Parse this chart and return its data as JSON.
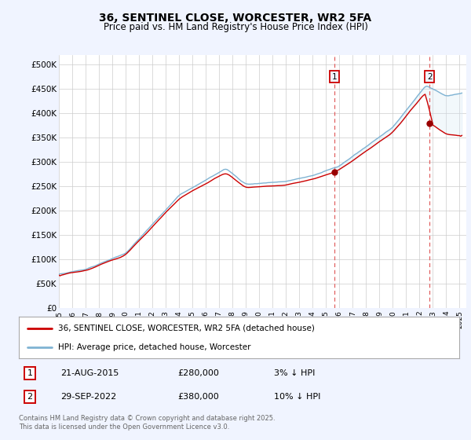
{
  "title": "36, SENTINEL CLOSE, WORCESTER, WR2 5FA",
  "subtitle": "Price paid vs. HM Land Registry's House Price Index (HPI)",
  "ylabel_ticks": [
    "£0",
    "£50K",
    "£100K",
    "£150K",
    "£200K",
    "£250K",
    "£300K",
    "£350K",
    "£400K",
    "£450K",
    "£500K"
  ],
  "ytick_values": [
    0,
    50000,
    100000,
    150000,
    200000,
    250000,
    300000,
    350000,
    400000,
    450000,
    500000
  ],
  "ylim": [
    0,
    520000
  ],
  "xlim_start": 1995.0,
  "xlim_end": 2025.5,
  "purchase1_date": 2015.64,
  "purchase1_price": 280000,
  "purchase2_date": 2022.75,
  "purchase2_price": 380000,
  "line1_label": "36, SENTINEL CLOSE, WORCESTER, WR2 5FA (detached house)",
  "line2_label": "HPI: Average price, detached house, Worcester",
  "line1_color": "#cc0000",
  "line2_color": "#7fb3d3",
  "fill_color": "#d6e8f5",
  "vline_color": "#e06060",
  "marker_color": "#990000",
  "footer": "Contains HM Land Registry data © Crown copyright and database right 2025.\nThis data is licensed under the Open Government Licence v3.0.",
  "bg_color": "#f0f4ff",
  "plot_bg_color": "#ffffff",
  "grid_color": "#cccccc"
}
